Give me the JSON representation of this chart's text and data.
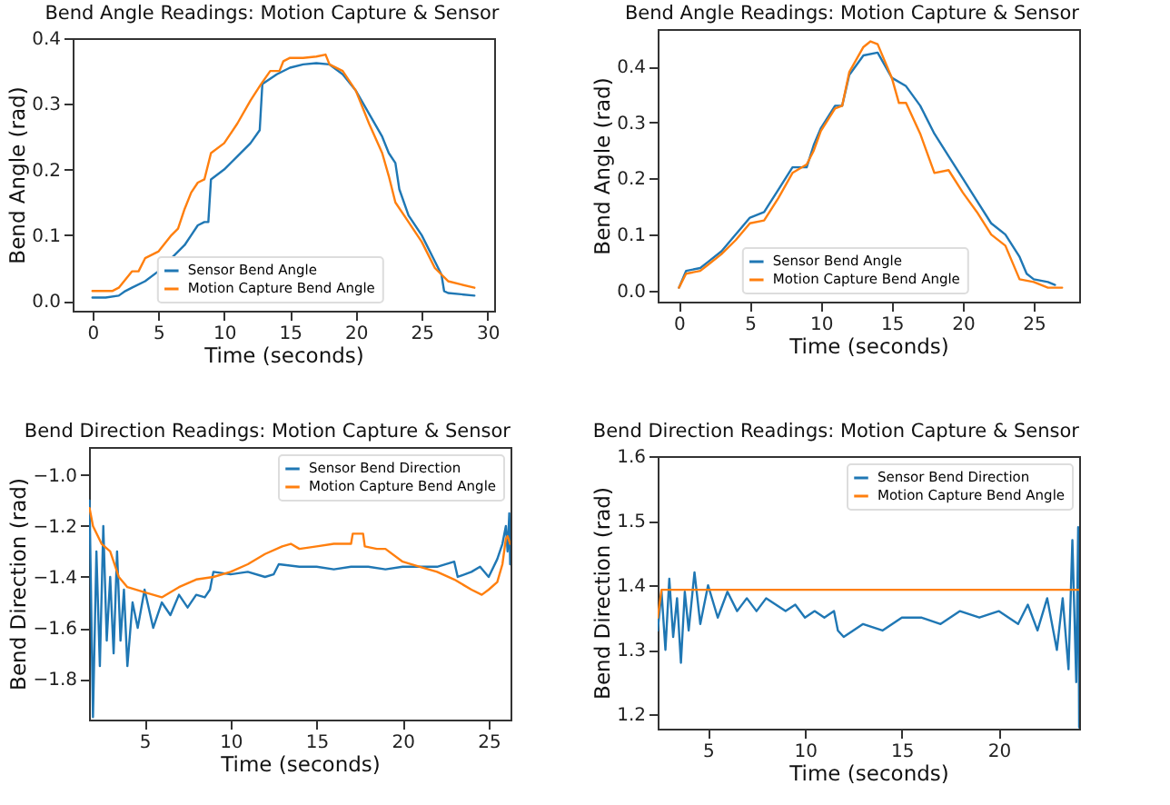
{
  "chart_data": [
    {
      "type": "line",
      "title": "Bend Angle Readings: Motion Capture & Sensor",
      "xlabel": "Time (seconds)",
      "ylabel": "Bend Angle (rad)",
      "xlim": [
        -1.5,
        30.5
      ],
      "ylim": [
        -0.015,
        0.4
      ],
      "xticks": [
        0,
        5,
        10,
        15,
        20,
        25,
        30
      ],
      "yticks": [
        {
          "value": 0,
          "label": "0.0"
        },
        0.1,
        0.2,
        0.3,
        0.4
      ],
      "legend": "bottom",
      "series": [
        {
          "name": "Sensor Bend Angle",
          "color": "#1f77b4",
          "x": [
            0,
            1,
            2,
            2.5,
            3,
            4,
            5,
            6,
            7,
            7.5,
            8,
            8.5,
            8.8,
            9,
            10,
            11,
            12,
            12.7,
            12.9,
            14,
            15,
            16,
            17,
            18,
            19,
            20,
            21,
            22,
            22.5,
            23,
            23.3,
            24,
            25,
            26,
            26.5,
            26.7,
            27,
            28,
            29
          ],
          "values": [
            0.005,
            0.005,
            0.008,
            0.015,
            0.02,
            0.03,
            0.045,
            0.065,
            0.085,
            0.1,
            0.115,
            0.12,
            0.12,
            0.185,
            0.2,
            0.22,
            0.24,
            0.26,
            0.33,
            0.345,
            0.355,
            0.36,
            0.362,
            0.36,
            0.345,
            0.32,
            0.285,
            0.25,
            0.225,
            0.21,
            0.17,
            0.13,
            0.1,
            0.06,
            0.04,
            0.015,
            0.012,
            0.01,
            0.008
          ]
        },
        {
          "name": "Motion Capture Bend Angle",
          "color": "#ff7f0e",
          "x": [
            0,
            1.5,
            2,
            3,
            3.5,
            4,
            5,
            6,
            6.5,
            7,
            7.5,
            8,
            8.5,
            9,
            10,
            11,
            12,
            12.8,
            13.5,
            14.2,
            14.5,
            15,
            16,
            17,
            17.7,
            18,
            19,
            20,
            21,
            22,
            22.5,
            23,
            24,
            25,
            26,
            27,
            28,
            29
          ],
          "values": [
            0.015,
            0.015,
            0.02,
            0.045,
            0.045,
            0.065,
            0.075,
            0.1,
            0.11,
            0.14,
            0.165,
            0.18,
            0.185,
            0.225,
            0.24,
            0.27,
            0.305,
            0.33,
            0.35,
            0.35,
            0.365,
            0.37,
            0.37,
            0.372,
            0.375,
            0.36,
            0.35,
            0.32,
            0.27,
            0.225,
            0.19,
            0.15,
            0.12,
            0.09,
            0.05,
            0.03,
            0.025,
            0.02
          ]
        }
      ]
    },
    {
      "type": "line",
      "title": "Bend Angle Readings: Motion Capture & Sensor",
      "xlabel": "Time (seconds)",
      "ylabel": "Bend Angle (rad)",
      "xlim": [
        -1.5,
        28.2
      ],
      "ylim": [
        -0.02,
        0.467
      ],
      "xticks": [
        0,
        5,
        10,
        15,
        20,
        25
      ],
      "yticks": [
        {
          "value": 0,
          "label": "0.0"
        },
        0.1,
        0.2,
        0.3,
        0.4
      ],
      "legend": "bottom",
      "series": [
        {
          "name": "Sensor Bend Angle",
          "color": "#1f77b4",
          "x": [
            0,
            0.5,
            1.5,
            2,
            3,
            4,
            5,
            6,
            7,
            8,
            9,
            9.5,
            10,
            11,
            11.5,
            12,
            13,
            14,
            15,
            16,
            17,
            18,
            19,
            20,
            21,
            22,
            23,
            24,
            24.5,
            25,
            26,
            26.5
          ],
          "values": [
            0.005,
            0.035,
            0.04,
            0.05,
            0.07,
            0.1,
            0.13,
            0.14,
            0.18,
            0.22,
            0.22,
            0.26,
            0.29,
            0.33,
            0.33,
            0.385,
            0.42,
            0.425,
            0.38,
            0.365,
            0.33,
            0.28,
            0.24,
            0.2,
            0.16,
            0.12,
            0.1,
            0.06,
            0.03,
            0.02,
            0.015,
            0.01
          ]
        },
        {
          "name": "Motion Capture Bend Angle",
          "color": "#ff7f0e",
          "x": [
            0,
            0.5,
            1.5,
            2,
            3,
            4,
            5,
            6,
            7,
            8,
            9,
            9.5,
            10,
            11,
            11.5,
            12,
            13,
            13.5,
            14,
            15,
            15.5,
            16,
            17,
            18,
            19,
            20,
            21,
            22,
            23,
            24,
            25,
            26,
            27
          ],
          "values": [
            0.005,
            0.03,
            0.035,
            0.045,
            0.065,
            0.09,
            0.12,
            0.125,
            0.165,
            0.21,
            0.225,
            0.25,
            0.285,
            0.325,
            0.33,
            0.39,
            0.435,
            0.445,
            0.44,
            0.38,
            0.335,
            0.335,
            0.28,
            0.21,
            0.215,
            0.175,
            0.14,
            0.1,
            0.08,
            0.02,
            0.015,
            0.005,
            0.005
          ]
        }
      ]
    },
    {
      "type": "line",
      "title": "Bend Direction Readings: Motion Capture & Sensor",
      "xlabel": "Time (seconds)",
      "ylabel": "Bend Direction (rad)",
      "xlim": [
        1.77,
        26.27
      ],
      "ylim": [
        -1.96,
        -0.89
      ],
      "xticks": [
        5,
        10,
        15,
        20,
        25
      ],
      "yticks": [
        {
          "value": -1.8,
          "label": "−1.8"
        },
        {
          "value": -1.6,
          "label": "−1.6"
        },
        {
          "value": -1.4,
          "label": "−1.4"
        },
        {
          "value": -1.2,
          "label": "−1.2"
        },
        {
          "value": -1.0,
          "label": "−1.0"
        }
      ],
      "legend": "top right",
      "series": [
        {
          "name": "Sensor Bend Direction",
          "color": "#1f77b4",
          "x": [
            1.8,
            2,
            2.2,
            2.4,
            2.6,
            2.8,
            3,
            3.2,
            3.4,
            3.6,
            3.8,
            4,
            4.3,
            4.6,
            5,
            5.5,
            6,
            6.5,
            7,
            7.5,
            8,
            8.5,
            8.8,
            9,
            10,
            11,
            12,
            12.5,
            12.8,
            14,
            15,
            16,
            17,
            18,
            19,
            20,
            21,
            22,
            23,
            23.2,
            24,
            24.5,
            25,
            25.5,
            25.8,
            26,
            26.1,
            26.2,
            26.25
          ],
          "values": [
            -1.1,
            -1.95,
            -1.3,
            -1.75,
            -1.2,
            -1.65,
            -1.4,
            -1.7,
            -1.3,
            -1.65,
            -1.45,
            -1.75,
            -1.5,
            -1.6,
            -1.45,
            -1.6,
            -1.5,
            -1.55,
            -1.47,
            -1.52,
            -1.47,
            -1.48,
            -1.45,
            -1.38,
            -1.39,
            -1.38,
            -1.4,
            -1.39,
            -1.35,
            -1.36,
            -1.36,
            -1.37,
            -1.36,
            -1.36,
            -1.37,
            -1.36,
            -1.36,
            -1.36,
            -1.34,
            -1.4,
            -1.38,
            -1.36,
            -1.4,
            -1.33,
            -1.27,
            -1.2,
            -1.3,
            -1.15,
            -1.35
          ]
        },
        {
          "name": "Motion Capture Bend Angle",
          "color": "#ff7f0e",
          "x": [
            1.8,
            2,
            2.5,
            3,
            3.5,
            4,
            5,
            6,
            7,
            8,
            9,
            10,
            11,
            12,
            13,
            13.5,
            14,
            15,
            16,
            17,
            17.1,
            17.7,
            17.8,
            18.5,
            19,
            20,
            21,
            22,
            23,
            24,
            24.6,
            25,
            25.5,
            25.8,
            26,
            26.1,
            26.25
          ],
          "values": [
            -1.13,
            -1.2,
            -1.27,
            -1.3,
            -1.4,
            -1.44,
            -1.46,
            -1.48,
            -1.44,
            -1.41,
            -1.4,
            -1.38,
            -1.35,
            -1.31,
            -1.28,
            -1.27,
            -1.29,
            -1.28,
            -1.27,
            -1.27,
            -1.23,
            -1.23,
            -1.28,
            -1.29,
            -1.29,
            -1.34,
            -1.36,
            -1.38,
            -1.41,
            -1.45,
            -1.47,
            -1.45,
            -1.42,
            -1.35,
            -1.25,
            -1.24,
            -1.27
          ]
        }
      ]
    },
    {
      "type": "line",
      "title": "Bend Direction Readings: Motion Capture & Sensor",
      "xlabel": "Time (seconds)",
      "ylabel": "Bend Direction (rad)",
      "xlim": [
        2.4,
        24.15
      ],
      "ylim": [
        1.178,
        1.6
      ],
      "xticks": [
        5,
        10,
        15,
        20
      ],
      "yticks": [
        1.2,
        1.3,
        1.4,
        1.5,
        1.6
      ],
      "legend": "top right",
      "series": [
        {
          "name": "Sensor Bend Direction",
          "color": "#1f77b4",
          "x": [
            2.4,
            2.6,
            2.8,
            3,
            3.2,
            3.4,
            3.6,
            3.8,
            4,
            4.3,
            4.6,
            5,
            5.5,
            6,
            6.5,
            7,
            7.5,
            8,
            8.5,
            9,
            9.5,
            10,
            10.5,
            11,
            11.5,
            11.7,
            12,
            13,
            14,
            15,
            16,
            17,
            18,
            19,
            20,
            21,
            21.5,
            22,
            22.5,
            23,
            23.3,
            23.6,
            23.8,
            24,
            24.1,
            24.15
          ],
          "values": [
            1.33,
            1.39,
            1.3,
            1.41,
            1.32,
            1.38,
            1.28,
            1.39,
            1.33,
            1.42,
            1.34,
            1.4,
            1.35,
            1.39,
            1.36,
            1.38,
            1.36,
            1.38,
            1.37,
            1.36,
            1.37,
            1.35,
            1.36,
            1.35,
            1.36,
            1.33,
            1.32,
            1.34,
            1.33,
            1.35,
            1.35,
            1.34,
            1.36,
            1.35,
            1.36,
            1.34,
            1.37,
            1.33,
            1.38,
            1.3,
            1.38,
            1.27,
            1.47,
            1.25,
            1.49,
            1.18
          ]
        },
        {
          "name": "Motion Capture Bend Angle",
          "color": "#ff7f0e",
          "x": [
            2.4,
            2.6,
            24.15
          ],
          "values": [
            1.35,
            1.393,
            1.393
          ]
        }
      ]
    }
  ]
}
